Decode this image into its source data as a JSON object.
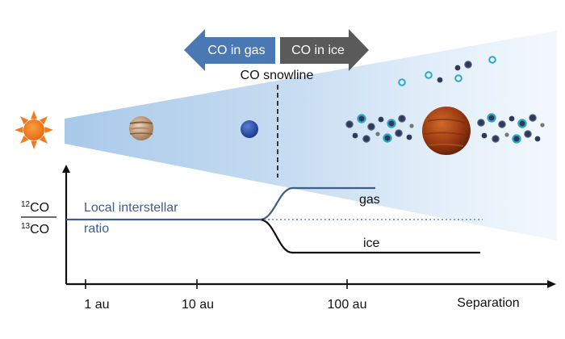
{
  "arrows": {
    "gas_label": "CO in gas",
    "ice_label": "CO in ice",
    "gas_color": "#4a78b5",
    "ice_color": "#5a5a5a"
  },
  "snowline_label": "CO snowline",
  "ratio_axis": {
    "numerator": {
      "mass": "12",
      "species": "CO"
    },
    "denominator": {
      "mass": "13",
      "species": "CO"
    }
  },
  "interstellar": {
    "line1": "Local interstellar",
    "line2": "ratio"
  },
  "curves": {
    "gas_label": "gas",
    "ice_label": "ice"
  },
  "x_axis": {
    "ticks": [
      "1 au",
      "10 au",
      "100 au"
    ],
    "label": "Separation"
  },
  "objects": {
    "star": "sun-icon",
    "planets": [
      "jupiter-like-planet-icon",
      "neptune-like-planet-icon",
      "hot-giant-planet-icon"
    ]
  },
  "colors": {
    "disk": "#b7d2ec",
    "interstellar_line": "#3f5d8a",
    "ice_grain": "#2e3a5a",
    "ice_grain_ring": "#2aa8cc",
    "star": "#f07a1c"
  }
}
